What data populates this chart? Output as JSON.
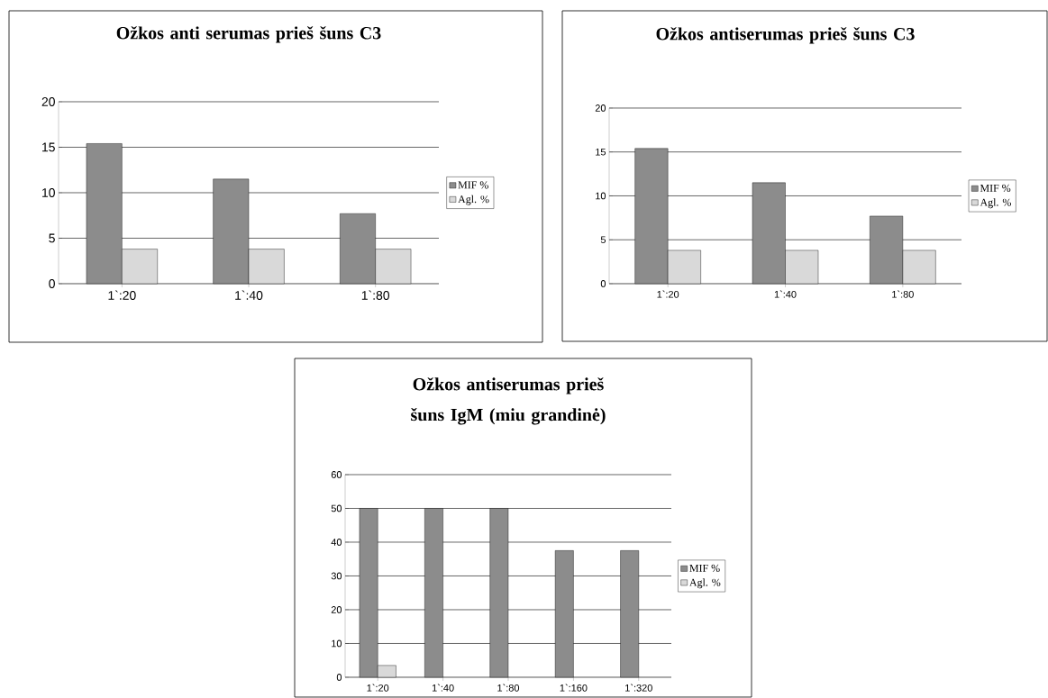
{
  "chart_data": [
    {
      "type": "bar",
      "title": "Ožkos anti serumas prieš šuns C3",
      "categories": [
        "1`:20",
        "1`:40",
        "1`:80"
      ],
      "series": [
        {
          "name": "MIF %",
          "color": "#8c8c8c",
          "values": [
            15.4,
            11.5,
            7.7
          ]
        },
        {
          "name": "Agl. %",
          "color": "#d9d9d9",
          "values": [
            3.8,
            3.8,
            3.8
          ]
        }
      ],
      "ylim": [
        0,
        20
      ],
      "yticks": [
        0,
        5,
        10,
        15,
        20
      ],
      "grid": "y",
      "legend": "right"
    },
    {
      "type": "bar",
      "title": "Ožkos antiserumas prieš šuns C3",
      "categories": [
        "1`:20",
        "1`:40",
        "1`:80"
      ],
      "series": [
        {
          "name": "MIF %",
          "color": "#8c8c8c",
          "values": [
            15.4,
            11.5,
            7.7
          ]
        },
        {
          "name": "Agl. %",
          "color": "#d9d9d9",
          "values": [
            3.8,
            3.8,
            3.8
          ]
        }
      ],
      "ylim": [
        0,
        20
      ],
      "yticks": [
        0,
        5,
        10,
        15,
        20
      ],
      "grid": "y",
      "legend": "right"
    },
    {
      "type": "bar",
      "title": "Ožkos antiserumas prieš šuns IgM (miu grandinė)",
      "categories": [
        "1`:20",
        "1`:40",
        "1`:80",
        "1`:160",
        "1`:320"
      ],
      "series": [
        {
          "name": "MIF %",
          "color": "#8c8c8c",
          "values": [
            50,
            50,
            50,
            37.5,
            37.5
          ]
        },
        {
          "name": "Agl. %",
          "color": "#d9d9d9",
          "values": [
            3.5,
            null,
            null,
            null,
            null
          ]
        }
      ],
      "ylim": [
        0,
        60
      ],
      "yticks": [
        0,
        10,
        20,
        30,
        40,
        50,
        60
      ],
      "grid": "y",
      "legend": "right"
    }
  ]
}
